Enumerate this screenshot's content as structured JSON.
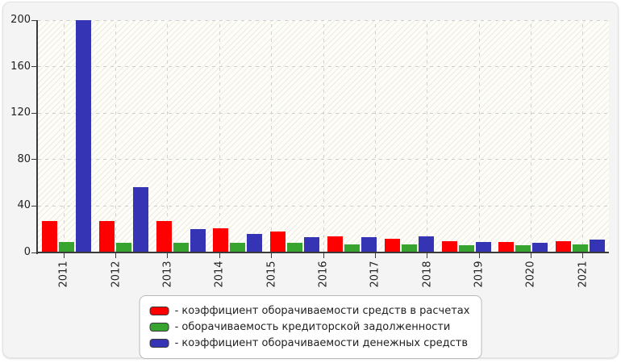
{
  "chart_data": {
    "type": "bar",
    "title": "",
    "xlabel": "",
    "ylabel": "",
    "categories": [
      "2011",
      "2012",
      "2013",
      "2014",
      "2015",
      "2016",
      "2017",
      "2018",
      "2019",
      "2020",
      "2021"
    ],
    "series": [
      {
        "name": "коэффициент оборачиваемости средств в расчетах",
        "color": "#ff0000",
        "values": [
          27,
          27,
          27,
          21,
          18,
          14,
          12,
          10,
          9,
          10
        ]
      },
      {
        "name": "оборачиваемость кредиторской задолженности",
        "color": "#36a42e",
        "values": [
          9,
          8,
          8,
          8,
          8,
          7,
          7,
          6,
          6,
          7
        ]
      },
      {
        "name": "коэффициент оборачиваемости денежных средств",
        "color": "#3434b4",
        "values": [
          200,
          56,
          20,
          16,
          13,
          13,
          14,
          9,
          8,
          11
        ]
      }
    ],
    "ylim": [
      0,
      200
    ],
    "yticks": [
      0,
      40,
      80,
      120,
      160,
      200
    ],
    "grid": true,
    "grid_style": "dashed",
    "legend_position": "bottom",
    "bar_groups_drawn": 10,
    "x_tick_count": 11
  },
  "legend": {
    "items": [
      {
        "label": "- коэффициент оборачиваемости средств в расчетах",
        "color": "#ff0000"
      },
      {
        "label": "- оборачиваемость кредиторской задолженности",
        "color": "#36a42e"
      },
      {
        "label": "- коэффициент оборачиваемости денежных средств",
        "color": "#3434b4"
      }
    ]
  }
}
